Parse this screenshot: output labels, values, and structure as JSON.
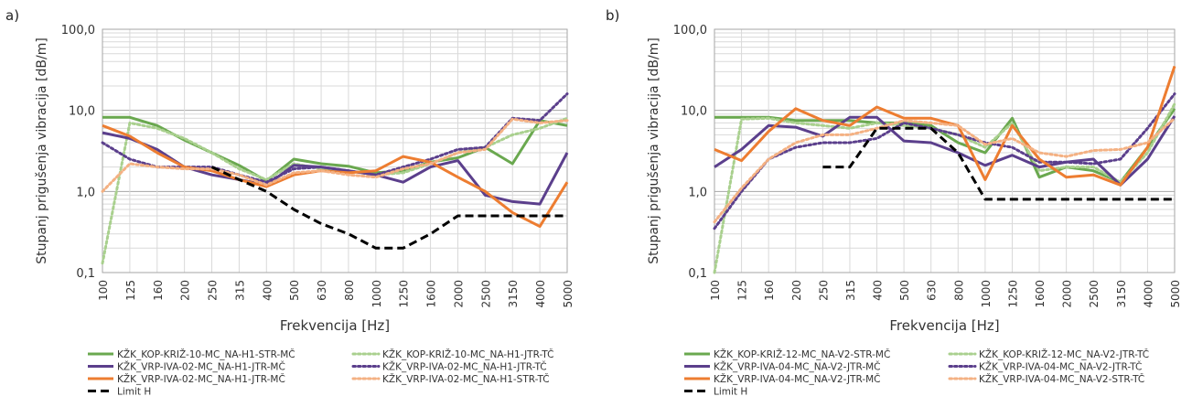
{
  "chart_data": [
    {
      "panel_label": "a)",
      "type": "line",
      "xlabel": "Frekvencija [Hz]",
      "ylabel": "Stupanj prigušenja vibracija [dB/m]",
      "yscale": "log",
      "ylim": [
        0.1,
        100
      ],
      "yticks": [
        "0,1",
        "1,0",
        "10,0",
        "100,0"
      ],
      "categories": [
        "100",
        "125",
        "160",
        "200",
        "250",
        "315",
        "400",
        "500",
        "630",
        "800",
        "1000",
        "1250",
        "1600",
        "2000",
        "2500",
        "3150",
        "4000",
        "5000"
      ],
      "grid": true,
      "legend": "bottom",
      "series": [
        {
          "name": "KŽK_KOP-KRIŽ-10-MC_NA-H1-STR-MČ",
          "color": "#6aa84f",
          "style": "solid",
          "values": [
            8.2,
            8.2,
            6.5,
            4.3,
            3.0,
            2.1,
            1.35,
            2.5,
            2.2,
            2.05,
            1.7,
            1.8,
            2.3,
            2.6,
            3.5,
            2.2,
            7.5,
            6.5
          ]
        },
        {
          "name": "KŽK_KOP-KRIŽ-10-MC_NA-H1-JTR-TČ",
          "color": "#a9d08e",
          "style": "dot",
          "values": [
            0.13,
            7.0,
            6.0,
            4.5,
            3.0,
            1.9,
            1.4,
            2.2,
            1.9,
            1.8,
            1.6,
            1.7,
            2.2,
            3.0,
            3.5,
            5.0,
            6.0,
            8.0
          ]
        },
        {
          "name": "KŽK_VRP-IVA-02-MC_NA-H1-JTR-MČ",
          "color": "#5b3f8c",
          "style": "solid",
          "values": [
            5.3,
            4.5,
            3.3,
            2.0,
            1.6,
            1.4,
            1.2,
            2.1,
            2.0,
            1.8,
            1.6,
            1.3,
            2.0,
            2.4,
            0.9,
            0.75,
            0.7,
            3.0
          ]
        },
        {
          "name": "KŽK_VRP-IVA-02-MC_NA-H1-JTR-TČ",
          "color": "#5b3f8c",
          "style": "dot",
          "values": [
            4.0,
            2.5,
            2.0,
            2.0,
            2.0,
            1.6,
            1.3,
            1.9,
            2.0,
            1.8,
            1.6,
            2.0,
            2.5,
            3.3,
            3.5,
            8.0,
            7.5,
            16.0
          ]
        },
        {
          "name": "KŽK_VRP-IVA-02-MC_NA-H1-JTR-MČ",
          "color": "#ed7d31",
          "style": "solid",
          "values": [
            6.5,
            4.8,
            3.0,
            2.0,
            1.8,
            1.4,
            1.15,
            1.6,
            1.8,
            1.7,
            1.8,
            2.7,
            2.3,
            1.5,
            1.0,
            0.55,
            0.37,
            1.3
          ]
        },
        {
          "name": "KŽK_VRP-IVA-02-MC_NA-H1-STR-TČ",
          "color": "#f4b183",
          "style": "dot",
          "values": [
            1.0,
            2.2,
            2.0,
            1.9,
            1.9,
            1.6,
            1.2,
            1.7,
            1.8,
            1.6,
            1.5,
            1.9,
            2.2,
            3.0,
            3.3,
            7.8,
            7.0,
            7.5
          ]
        },
        {
          "name": "Limit H",
          "color": "#000000",
          "style": "dash",
          "values": [
            null,
            null,
            null,
            null,
            2.0,
            1.4,
            1.0,
            0.6,
            0.4,
            0.3,
            0.2,
            0.2,
            0.3,
            0.5,
            0.5,
            0.5,
            0.5,
            0.5
          ]
        }
      ]
    },
    {
      "panel_label": "b)",
      "type": "line",
      "xlabel": "Frekvencija [Hz]",
      "ylabel": "Stupanj prigušenja vibracija [dB/m]",
      "yscale": "log",
      "ylim": [
        0.1,
        100
      ],
      "yticks": [
        "0,1",
        "1,0",
        "10,0",
        "100,0"
      ],
      "categories": [
        "100",
        "125",
        "160",
        "200",
        "250",
        "315",
        "400",
        "500",
        "630",
        "800",
        "1000",
        "1250",
        "1600",
        "2000",
        "2500",
        "3150",
        "4000",
        "5000"
      ],
      "grid": true,
      "legend": "bottom",
      "series": [
        {
          "name": "KŽK_KOP-KRIŽ-12-MC_NA-V2-STR-MČ",
          "color": "#6aa84f",
          "style": "solid",
          "values": [
            8.2,
            8.2,
            8.2,
            7.5,
            7.5,
            7.5,
            7.0,
            7.0,
            6.5,
            4.0,
            3.0,
            8.0,
            1.5,
            2.0,
            1.8,
            1.3,
            3.5,
            10.5
          ]
        },
        {
          "name": "KŽK_KOP-KRIŽ-12-MC_NA-V2-JTR-TČ",
          "color": "#a9d08e",
          "style": "dot",
          "values": [
            0.1,
            7.8,
            8.0,
            7.0,
            6.5,
            6.0,
            7.0,
            6.5,
            6.0,
            5.0,
            3.5,
            7.0,
            1.8,
            2.0,
            2.0,
            1.3,
            3.0,
            12.0
          ]
        },
        {
          "name": "KŽK_VRP-IVA-04-MC_NA-V2-JTR-MČ",
          "color": "#5b3f8c",
          "style": "solid",
          "values": [
            2.0,
            3.3,
            6.5,
            6.2,
            4.8,
            8.2,
            8.2,
            4.2,
            4.0,
            3.0,
            2.1,
            2.8,
            2.0,
            2.3,
            2.5,
            1.2,
            2.5,
            8.5
          ]
        },
        {
          "name": "KŽK_VRP-IVA-04-MC_NA-V2-JTR-TČ",
          "color": "#5b3f8c",
          "style": "dot",
          "values": [
            0.35,
            1.0,
            2.5,
            3.5,
            4.0,
            4.0,
            4.5,
            7.0,
            6.0,
            5.0,
            4.0,
            3.5,
            2.3,
            2.3,
            2.2,
            2.5,
            6.0,
            16.0
          ]
        },
        {
          "name": "KŽK_VRP-IVA-04-MC_NA-V2-JTR-MČ",
          "color": "#ed7d31",
          "style": "solid",
          "values": [
            3.3,
            2.4,
            5.5,
            10.5,
            7.5,
            6.5,
            11.0,
            8.0,
            8.0,
            6.5,
            1.4,
            6.5,
            2.5,
            1.5,
            1.6,
            1.2,
            3.5,
            35.0
          ]
        },
        {
          "name": "KŽK_VRP-IVA-04-MC_NA-V2-STR-TČ",
          "color": "#f4b183",
          "style": "dot",
          "values": [
            0.42,
            1.1,
            2.5,
            4.0,
            5.0,
            5.0,
            6.0,
            7.5,
            7.0,
            6.5,
            3.8,
            4.5,
            3.0,
            2.7,
            3.2,
            3.3,
            4.0,
            8.0
          ]
        },
        {
          "name": "Limit H",
          "color": "#000000",
          "style": "dash",
          "values": [
            null,
            null,
            null,
            null,
            2.0,
            2.0,
            6.0,
            6.0,
            6.0,
            3.0,
            0.8,
            0.8,
            0.8,
            0.8,
            0.8,
            0.8,
            0.8,
            0.8
          ]
        }
      ]
    }
  ]
}
